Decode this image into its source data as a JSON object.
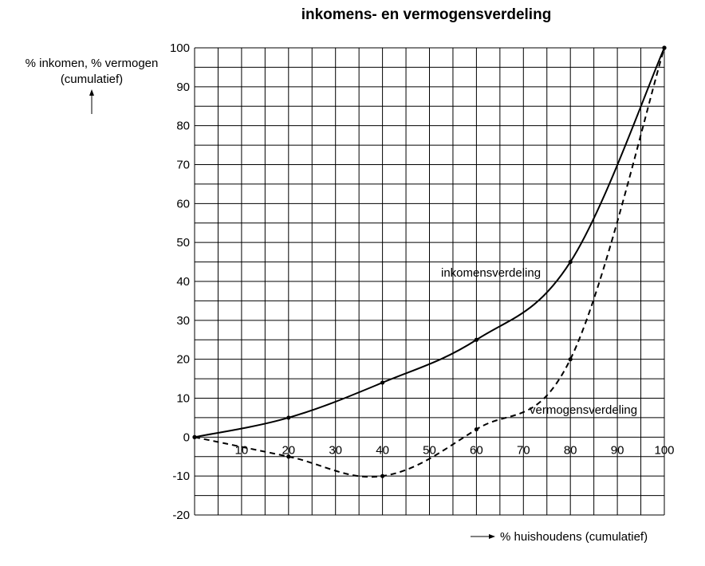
{
  "chart_data": {
    "type": "line",
    "title": "inkomens- en vermogensverdeling",
    "ylabel_line1": "% inkomen, % vermogen",
    "ylabel_line2": "(cumulatief)",
    "xlabel": "% huishoudens (cumulatief)",
    "xlim": [
      0,
      100
    ],
    "ylim": [
      -20,
      100
    ],
    "x_ticks": [
      10,
      20,
      30,
      40,
      50,
      60,
      70,
      80,
      90,
      100
    ],
    "y_ticks": [
      100,
      90,
      80,
      70,
      60,
      50,
      40,
      30,
      20,
      10,
      0,
      -10,
      -20
    ],
    "grid": true,
    "series": [
      {
        "name": "inkomensverdeling",
        "style": "solid",
        "points": [
          [
            0,
            0
          ],
          [
            20,
            5
          ],
          [
            40,
            14
          ],
          [
            60,
            25
          ],
          [
            80,
            45
          ],
          [
            100,
            100
          ]
        ]
      },
      {
        "name": "vermogensverdeling",
        "style": "dashed",
        "points": [
          [
            0,
            0
          ],
          [
            20,
            -5
          ],
          [
            40,
            -10
          ],
          [
            60,
            2
          ],
          [
            80,
            20
          ],
          [
            100,
            100
          ]
        ]
      }
    ]
  }
}
